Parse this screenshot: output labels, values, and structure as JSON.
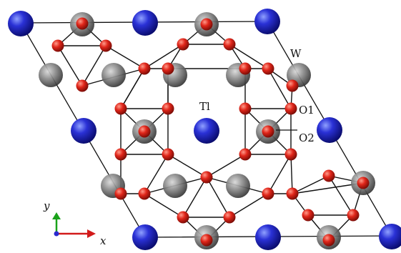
{
  "figure": {
    "labels": {
      "w": "W",
      "tl": "Tl",
      "o1": "O1",
      "o2": "O2"
    },
    "axes": {
      "x": "x",
      "y": "y"
    }
  },
  "colors": {
    "tl_atom": "#1b1fb8",
    "o_atom": "#cc1a12",
    "w_atom": "#6b6b6b",
    "bond": "#111111",
    "cell": "#111111",
    "x_axis": "#d21a1a",
    "y_axis": "#1aa21a",
    "origin": "#2a2ad0"
  }
}
